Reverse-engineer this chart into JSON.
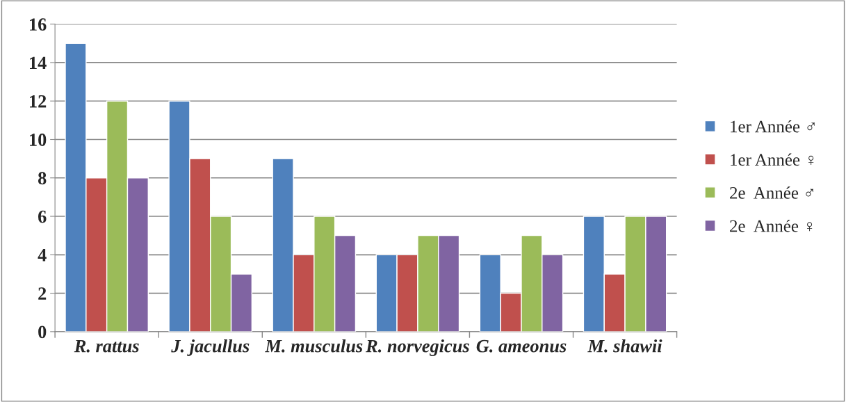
{
  "chart_data": {
    "type": "bar",
    "categories": [
      "R. rattus",
      "J. jacullus",
      "M. musculus",
      "R. norvegicus",
      "G. ameonus",
      "M. shawii"
    ],
    "series": [
      {
        "name": "1er Année ♂",
        "color": "#4f81bd",
        "values": [
          15,
          12,
          9,
          4,
          4,
          6
        ]
      },
      {
        "name": "1er Année ♀",
        "color": "#c0504d",
        "values": [
          8,
          9,
          4,
          4,
          2,
          3
        ]
      },
      {
        "name": "2e  Année ♂",
        "color": "#9bbb59",
        "values": [
          12,
          6,
          6,
          5,
          5,
          6
        ]
      },
      {
        "name": "2e  Année ♀",
        "color": "#8064a2",
        "values": [
          8,
          3,
          5,
          5,
          4,
          6
        ]
      }
    ],
    "ylim": [
      0,
      16
    ],
    "yticks": [
      0,
      2,
      4,
      6,
      8,
      10,
      12,
      14,
      16
    ],
    "grid": "y",
    "legend": "right"
  }
}
